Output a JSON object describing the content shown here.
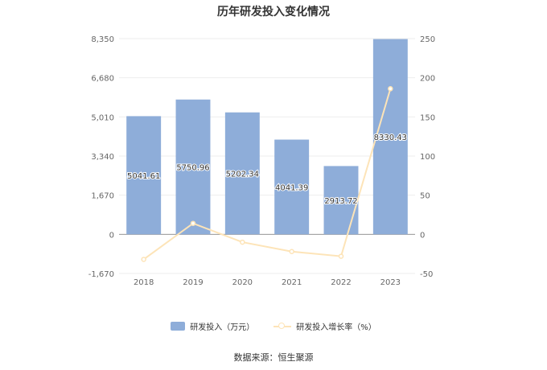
{
  "chart_data": {
    "type": "bar",
    "title": "历年研发投入变化情况",
    "categories": [
      "2018",
      "2019",
      "2020",
      "2021",
      "2022",
      "2023"
    ],
    "series": [
      {
        "name": "研发投入（万元）",
        "type": "bar",
        "axis": "left",
        "values": [
          5041.61,
          5750.96,
          5202.34,
          4041.39,
          2913.72,
          8330.43
        ],
        "labels": [
          "5041.61",
          "5750.96",
          "5202.34",
          "4041.39",
          "2913.72",
          "8330.43"
        ]
      },
      {
        "name": "研发投入增长率（%）",
        "type": "line",
        "axis": "right",
        "values": [
          -32,
          14,
          -10,
          -22,
          -28,
          186
        ]
      }
    ],
    "y_left": {
      "ylim": [
        -1670,
        8350
      ],
      "ticks": [
        "8,350",
        "6,680",
        "5,010",
        "3,340",
        "1,670",
        "0",
        "-1,670"
      ]
    },
    "y_right": {
      "ylim": [
        -50,
        250
      ],
      "ticks": [
        "250",
        "200",
        "150",
        "100",
        "50",
        "0",
        "-50"
      ]
    },
    "grid": true,
    "legend": "bottom",
    "colors": {
      "bar": "#8eadd9",
      "line": "#fde4b8",
      "axis": "#666666",
      "grid": "#eeeeee"
    }
  },
  "footer": {
    "source": "数据来源：恒生聚源"
  }
}
